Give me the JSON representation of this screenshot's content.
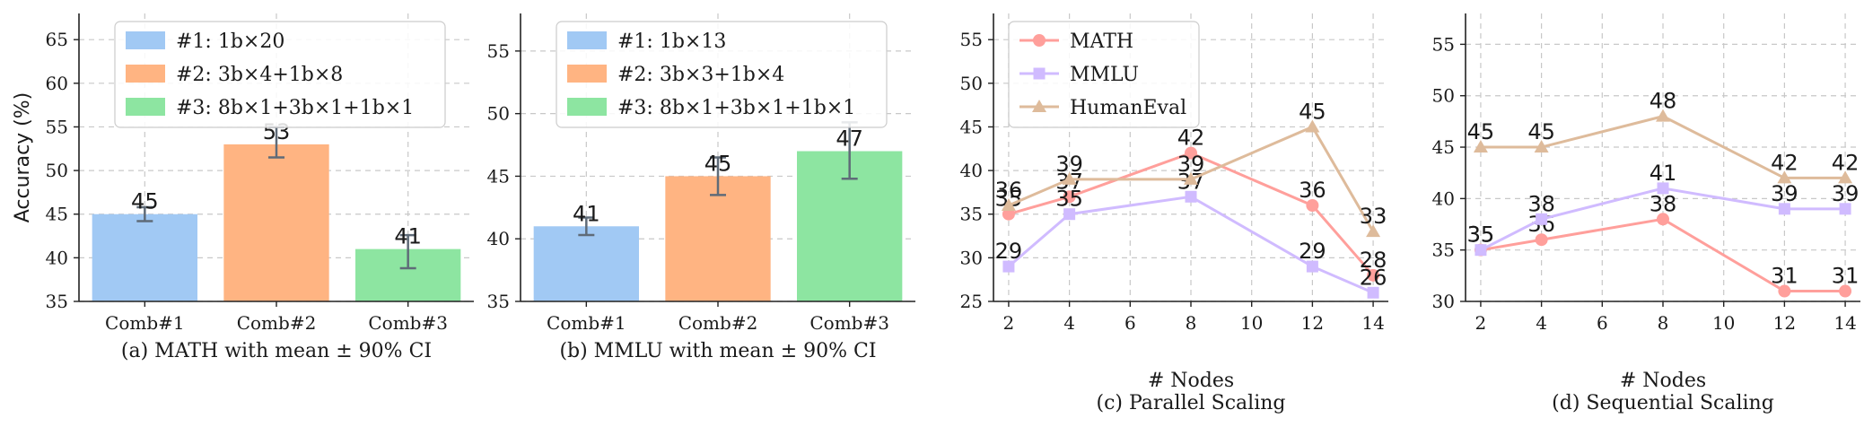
{
  "chart_data": [
    {
      "type": "bar",
      "title": "(a) MATH with mean ± 90% CI",
      "xlabel": "",
      "ylabel": "Accuracy (%)",
      "categories": [
        "Comb#1",
        "Comb#2",
        "Comb#3"
      ],
      "values": [
        45,
        53,
        41
      ],
      "error_low": [
        44.2,
        51.5,
        38.8
      ],
      "error_high": [
        45.8,
        55.0,
        42.6
      ],
      "colors": [
        "#a1c9f4",
        "#ffb482",
        "#8de5a1"
      ],
      "ylim": [
        35,
        68
      ],
      "yticks": [
        35,
        40,
        45,
        50,
        55,
        60,
        65
      ],
      "legend_position": "top-left",
      "legend": [
        "#1: 1b×20",
        "#2: 3b×4+1b×8",
        "#3: 8b×1+3b×1+1b×1"
      ],
      "grid": true
    },
    {
      "type": "bar",
      "title": "(b) MMLU with mean ± 90% CI",
      "xlabel": "",
      "ylabel": "",
      "categories": [
        "Comb#1",
        "Comb#2",
        "Comb#3"
      ],
      "values": [
        41,
        45,
        47
      ],
      "error_low": [
        40.3,
        43.5,
        44.8
      ],
      "error_high": [
        41.7,
        46.5,
        49.3
      ],
      "colors": [
        "#a1c9f4",
        "#ffb482",
        "#8de5a1"
      ],
      "ylim": [
        35,
        58
      ],
      "yticks": [
        35,
        40,
        45,
        50,
        55
      ],
      "legend_position": "top-left",
      "legend": [
        "#1: 1b×13",
        "#2: 3b×3+1b×4",
        "#3: 8b×1+3b×1+1b×1"
      ],
      "grid": true
    },
    {
      "type": "line",
      "title": "(c) Parallel Scaling",
      "xlabel": "# Nodes",
      "ylabel": "",
      "x": [
        2,
        4,
        8,
        12,
        14
      ],
      "xlim": [
        1.5,
        14.5
      ],
      "xticks": [
        2,
        4,
        6,
        8,
        10,
        12,
        14
      ],
      "ylim": [
        25,
        58
      ],
      "yticks": [
        25,
        30,
        35,
        40,
        45,
        50,
        55
      ],
      "legend_position": "top-left",
      "grid": true,
      "series": [
        {
          "name": "MATH",
          "values": [
            35,
            37,
            42,
            36,
            28
          ],
          "color": "#ff9f9b",
          "marker": "circle"
        },
        {
          "name": "MMLU",
          "values": [
            29,
            35,
            37,
            29,
            26
          ],
          "color": "#d0bbff",
          "marker": "square"
        },
        {
          "name": "HumanEval",
          "values": [
            36,
            39,
            39,
            45,
            33
          ],
          "color": "#debb9b",
          "marker": "triangle"
        }
      ]
    },
    {
      "type": "line",
      "title": "(d) Sequential Scaling",
      "xlabel": "# Nodes",
      "ylabel": "",
      "x": [
        2,
        4,
        8,
        12,
        14
      ],
      "xlim": [
        1.5,
        14.5
      ],
      "xticks": [
        2,
        4,
        6,
        8,
        10,
        12,
        14
      ],
      "ylim": [
        30,
        58
      ],
      "yticks": [
        30,
        35,
        40,
        45,
        50,
        55
      ],
      "legend_position": "none",
      "grid": true,
      "series": [
        {
          "name": "MATH",
          "values": [
            35,
            36,
            38,
            31,
            31
          ],
          "color": "#ff9f9b",
          "marker": "circle"
        },
        {
          "name": "MMLU",
          "values": [
            35,
            38,
            41,
            39,
            39
          ],
          "color": "#d0bbff",
          "marker": "square"
        },
        {
          "name": "HumanEval",
          "values": [
            45,
            45,
            48,
            42,
            42
          ],
          "color": "#debb9b",
          "marker": "triangle"
        }
      ]
    }
  ]
}
